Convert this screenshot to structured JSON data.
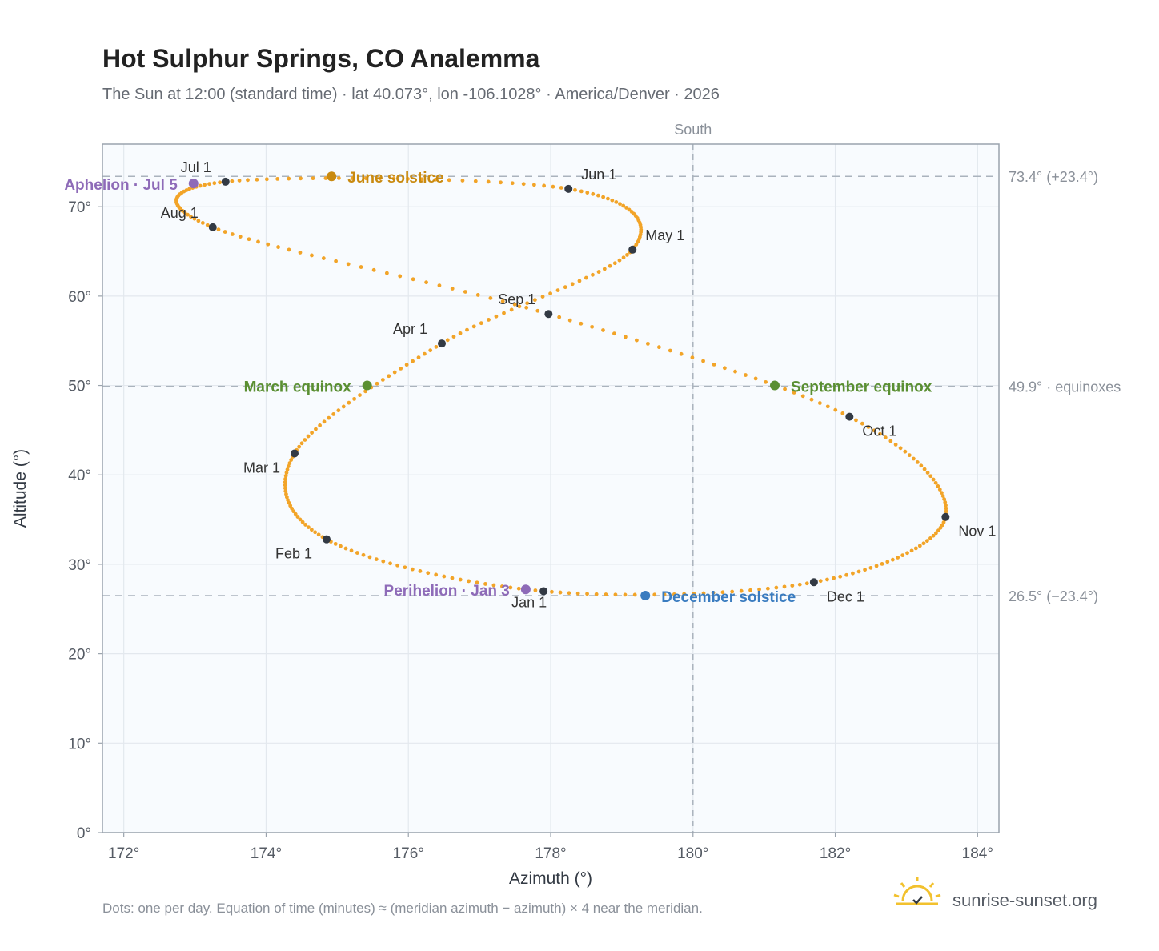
{
  "chart_data": {
    "type": "scatter",
    "title": "Hot Sulphur Springs, CO Analemma",
    "subtitle": "The Sun at 12:00 (standard time) · lat 40.073°, lon -106.1028° · America/Denver · 2026",
    "xlabel": "Azimuth (°)",
    "ylabel": "Altitude (°)",
    "xlim": [
      171.7,
      184.3
    ],
    "ylim": [
      0,
      77
    ],
    "x_ticks": [
      172,
      174,
      176,
      178,
      180,
      182,
      184
    ],
    "x_tick_labels": [
      "172°",
      "174°",
      "176°",
      "178°",
      "180°",
      "182°",
      "184°"
    ],
    "y_ticks": [
      0,
      10,
      20,
      30,
      40,
      50,
      60,
      70
    ],
    "y_tick_labels": [
      "0°",
      "10°",
      "20°",
      "30°",
      "40°",
      "50°",
      "60°",
      "70°"
    ],
    "grid": true,
    "south_line": {
      "x": 180,
      "label": "South"
    },
    "reference_lines": [
      {
        "y": 73.4,
        "label": "73.4° (+23.4°)"
      },
      {
        "y": 49.9,
        "label": "49.9° · equinoxes"
      },
      {
        "y": 26.5,
        "label": "26.5° (−23.4°)"
      }
    ],
    "month_points": [
      {
        "label": "Jan 1",
        "x": 177.9,
        "y": 27.0
      },
      {
        "label": "Feb 1",
        "x": 174.85,
        "y": 32.8
      },
      {
        "label": "Mar 1",
        "x": 174.4,
        "y": 42.4
      },
      {
        "label": "Apr 1",
        "x": 176.47,
        "y": 54.7
      },
      {
        "label": "May 1",
        "x": 179.15,
        "y": 65.2
      },
      {
        "label": "Jun 1",
        "x": 178.25,
        "y": 72.0
      },
      {
        "label": "Jul 1",
        "x": 173.43,
        "y": 72.8
      },
      {
        "label": "Aug 1",
        "x": 173.25,
        "y": 67.7
      },
      {
        "label": "Sep 1",
        "x": 177.97,
        "y": 58.0
      },
      {
        "label": "Oct 1",
        "x": 182.2,
        "y": 46.5
      },
      {
        "label": "Nov 1",
        "x": 183.55,
        "y": 35.3
      },
      {
        "label": "Dec 1",
        "x": 181.7,
        "y": 28.0
      }
    ],
    "events": [
      {
        "label": "Perihelion · Jan 3",
        "x": 177.65,
        "y": 27.2,
        "color": "#8e6bb8"
      },
      {
        "label": "March equinox",
        "x": 175.42,
        "y": 50.0,
        "color": "#5a8f32"
      },
      {
        "label": "June solstice",
        "x": 174.92,
        "y": 73.4,
        "color": "#c98a10"
      },
      {
        "label": "Aphelion · Jul 5",
        "x": 172.98,
        "y": 72.6,
        "color": "#8e6bb8"
      },
      {
        "label": "September equinox",
        "x": 181.15,
        "y": 50.0,
        "color": "#5a8f32"
      },
      {
        "label": "December solstice",
        "x": 179.33,
        "y": 26.5,
        "color": "#3a7cc0"
      }
    ],
    "series_color": "#f2a428"
  },
  "footnote": "Dots: one per day. Equation of time (minutes) ≈ (meridian azimuth − azimuth) × 4 near the meridian.",
  "brand": {
    "name": "sunrise-sunset.org",
    "logo_icon": "sun-logo-icon"
  }
}
